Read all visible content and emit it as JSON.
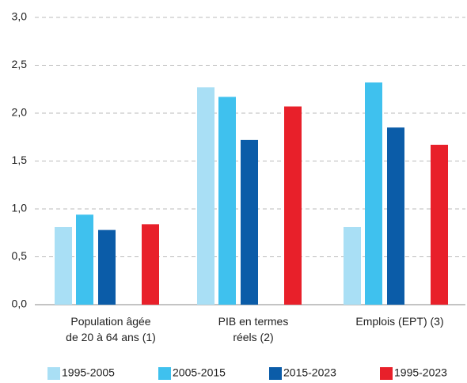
{
  "chart_data": {
    "type": "bar",
    "categories": [
      "Population âgée de 20 à 64 ans (1)",
      "PIB en termes réels (2)",
      "Emplois (EPT) (3)"
    ],
    "series": [
      {
        "name": "1995-2005",
        "color": "#a9dff5",
        "values": [
          0.81,
          2.27,
          0.81
        ]
      },
      {
        "name": "2005-2015",
        "color": "#3fc1ee",
        "values": [
          0.94,
          2.17,
          2.32
        ]
      },
      {
        "name": "2015-2023",
        "color": "#0b5ca8",
        "values": [
          0.78,
          1.72,
          1.85
        ]
      },
      {
        "name": "1995-2023",
        "color": "#e8202a",
        "values": [
          0.84,
          2.07,
          1.67
        ]
      }
    ],
    "ylim": [
      0,
      3
    ],
    "yticks": [
      {
        "value": 0,
        "label": "0,0"
      },
      {
        "value": 0.5,
        "label": "0,5"
      },
      {
        "value": 1,
        "label": "1,0"
      },
      {
        "value": 1.5,
        "label": "1,5"
      },
      {
        "value": 2,
        "label": "2,0"
      },
      {
        "value": 2.5,
        "label": "2,5"
      },
      {
        "value": 3,
        "label": "3,0"
      }
    ],
    "grid": true,
    "legend": "bottom"
  }
}
